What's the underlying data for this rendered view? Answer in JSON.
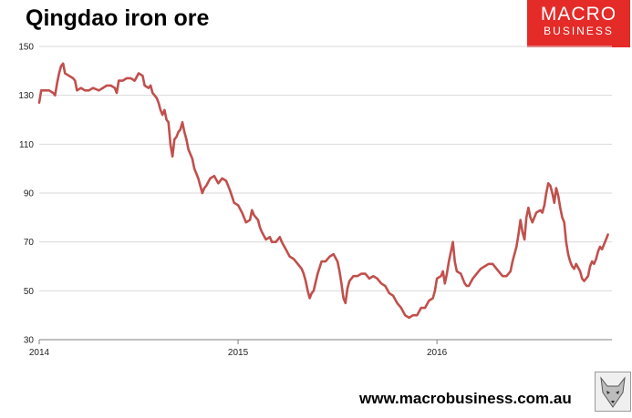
{
  "header": {
    "title": "Qingdao iron ore"
  },
  "logo": {
    "line1": "MACRO",
    "line2": "BUSINESS"
  },
  "footer": {
    "website": "www.macrobusiness.com.au"
  },
  "colors": {
    "series": "#c0504d",
    "grid": "#d9d9d9",
    "brand": "#e42b28"
  },
  "chart_data": {
    "type": "line",
    "title": "Qingdao iron ore",
    "xlabel": "",
    "ylabel": "",
    "ylim": [
      30,
      150
    ],
    "xlim": [
      2014.0,
      2016.88
    ],
    "yticks": [
      30,
      50,
      70,
      90,
      110,
      130,
      150
    ],
    "xticks": [
      {
        "value": 2014.0,
        "label": "2014"
      },
      {
        "value": 2015.0,
        "label": "2015"
      },
      {
        "value": 2016.0,
        "label": "2016"
      }
    ],
    "grid": true,
    "legend": "none",
    "series": [
      {
        "name": "Qingdao iron ore",
        "points": [
          [
            2014.0,
            127
          ],
          [
            2014.01,
            132
          ],
          [
            2014.03,
            132
          ],
          [
            2014.05,
            132
          ],
          [
            2014.07,
            131
          ],
          [
            2014.08,
            130
          ],
          [
            2014.09,
            135
          ],
          [
            2014.1,
            139
          ],
          [
            2014.11,
            142
          ],
          [
            2014.12,
            143
          ],
          [
            2014.13,
            139
          ],
          [
            2014.15,
            138
          ],
          [
            2014.17,
            137
          ],
          [
            2014.18,
            136
          ],
          [
            2014.19,
            132
          ],
          [
            2014.21,
            133
          ],
          [
            2014.23,
            132
          ],
          [
            2014.25,
            132
          ],
          [
            2014.27,
            133
          ],
          [
            2014.3,
            132
          ],
          [
            2014.32,
            133
          ],
          [
            2014.34,
            134
          ],
          [
            2014.36,
            134
          ],
          [
            2014.38,
            133
          ],
          [
            2014.39,
            131
          ],
          [
            2014.4,
            136
          ],
          [
            2014.42,
            136
          ],
          [
            2014.44,
            137
          ],
          [
            2014.46,
            137
          ],
          [
            2014.48,
            136
          ],
          [
            2014.5,
            139
          ],
          [
            2014.52,
            138
          ],
          [
            2014.53,
            134
          ],
          [
            2014.55,
            133
          ],
          [
            2014.56,
            134
          ],
          [
            2014.57,
            131
          ],
          [
            2014.59,
            129
          ],
          [
            2014.6,
            127
          ],
          [
            2014.61,
            124
          ],
          [
            2014.62,
            122
          ],
          [
            2014.63,
            124
          ],
          [
            2014.64,
            120
          ],
          [
            2014.65,
            119
          ],
          [
            2014.66,
            110
          ],
          [
            2014.67,
            105
          ],
          [
            2014.68,
            112
          ],
          [
            2014.69,
            113
          ],
          [
            2014.7,
            115
          ],
          [
            2014.71,
            116
          ],
          [
            2014.72,
            119
          ],
          [
            2014.73,
            115
          ],
          [
            2014.74,
            112
          ],
          [
            2014.75,
            108
          ],
          [
            2014.76,
            106
          ],
          [
            2014.77,
            104
          ],
          [
            2014.78,
            100
          ],
          [
            2014.79,
            98
          ],
          [
            2014.8,
            96
          ],
          [
            2014.81,
            93
          ],
          [
            2014.82,
            90
          ],
          [
            2014.83,
            92
          ],
          [
            2014.84,
            93
          ],
          [
            2014.86,
            96
          ],
          [
            2014.88,
            97
          ],
          [
            2014.9,
            94
          ],
          [
            2014.92,
            96
          ],
          [
            2014.94,
            95
          ],
          [
            2014.96,
            91
          ],
          [
            2014.98,
            86
          ],
          [
            2015.0,
            85
          ],
          [
            2015.02,
            82
          ],
          [
            2015.03,
            80
          ],
          [
            2015.04,
            78
          ],
          [
            2015.06,
            79
          ],
          [
            2015.07,
            83
          ],
          [
            2015.08,
            81
          ],
          [
            2015.1,
            79
          ],
          [
            2015.11,
            76
          ],
          [
            2015.12,
            74
          ],
          [
            2015.14,
            71
          ],
          [
            2015.16,
            72
          ],
          [
            2015.17,
            70
          ],
          [
            2015.19,
            70
          ],
          [
            2015.21,
            72
          ],
          [
            2015.22,
            70
          ],
          [
            2015.24,
            67
          ],
          [
            2015.26,
            64
          ],
          [
            2015.28,
            63
          ],
          [
            2015.3,
            61
          ],
          [
            2015.32,
            59
          ],
          [
            2015.33,
            57
          ],
          [
            2015.34,
            54
          ],
          [
            2015.35,
            50
          ],
          [
            2015.36,
            47
          ],
          [
            2015.37,
            49
          ],
          [
            2015.38,
            50
          ],
          [
            2015.4,
            57
          ],
          [
            2015.42,
            62
          ],
          [
            2015.44,
            62
          ],
          [
            2015.46,
            64
          ],
          [
            2015.48,
            65
          ],
          [
            2015.5,
            62
          ],
          [
            2015.51,
            58
          ],
          [
            2015.52,
            53
          ],
          [
            2015.53,
            47
          ],
          [
            2015.54,
            45
          ],
          [
            2015.55,
            51
          ],
          [
            2015.56,
            54
          ],
          [
            2015.58,
            56
          ],
          [
            2015.6,
            56
          ],
          [
            2015.62,
            57
          ],
          [
            2015.64,
            57
          ],
          [
            2015.66,
            55
          ],
          [
            2015.68,
            56
          ],
          [
            2015.7,
            55
          ],
          [
            2015.72,
            53
          ],
          [
            2015.74,
            52
          ],
          [
            2015.76,
            49
          ],
          [
            2015.78,
            48
          ],
          [
            2015.8,
            45
          ],
          [
            2015.82,
            43
          ],
          [
            2015.84,
            40
          ],
          [
            2015.86,
            39
          ],
          [
            2015.88,
            40
          ],
          [
            2015.9,
            40
          ],
          [
            2015.92,
            43
          ],
          [
            2015.94,
            43
          ],
          [
            2015.96,
            46
          ],
          [
            2015.98,
            47
          ],
          [
            2015.99,
            50
          ],
          [
            2016.0,
            55
          ],
          [
            2016.02,
            56
          ],
          [
            2016.03,
            58
          ],
          [
            2016.04,
            53
          ],
          [
            2016.05,
            57
          ],
          [
            2016.06,
            62
          ],
          [
            2016.07,
            66
          ],
          [
            2016.08,
            70
          ],
          [
            2016.09,
            62
          ],
          [
            2016.1,
            58
          ],
          [
            2016.12,
            57
          ],
          [
            2016.14,
            53
          ],
          [
            2016.15,
            52
          ],
          [
            2016.16,
            52
          ],
          [
            2016.18,
            55
          ],
          [
            2016.2,
            57
          ],
          [
            2016.22,
            59
          ],
          [
            2016.24,
            60
          ],
          [
            2016.26,
            61
          ],
          [
            2016.28,
            61
          ],
          [
            2016.3,
            59
          ],
          [
            2016.32,
            57
          ],
          [
            2016.33,
            56
          ],
          [
            2016.35,
            56
          ],
          [
            2016.37,
            58
          ],
          [
            2016.38,
            62
          ],
          [
            2016.4,
            68
          ],
          [
            2016.41,
            73
          ],
          [
            2016.42,
            79
          ],
          [
            2016.43,
            74
          ],
          [
            2016.44,
            71
          ],
          [
            2016.45,
            80
          ],
          [
            2016.46,
            84
          ],
          [
            2016.47,
            80
          ],
          [
            2016.48,
            78
          ],
          [
            2016.5,
            82
          ],
          [
            2016.52,
            83
          ],
          [
            2016.53,
            82
          ],
          [
            2016.54,
            85
          ],
          [
            2016.55,
            90
          ],
          [
            2016.56,
            94
          ],
          [
            2016.57,
            93
          ],
          [
            2016.58,
            90
          ],
          [
            2016.59,
            86
          ],
          [
            2016.6,
            92
          ],
          [
            2016.61,
            89
          ],
          [
            2016.62,
            84
          ],
          [
            2016.63,
            80
          ],
          [
            2016.64,
            78
          ],
          [
            2016.65,
            70
          ],
          [
            2016.66,
            65
          ],
          [
            2016.67,
            62
          ],
          [
            2016.68,
            60
          ],
          [
            2016.69,
            59
          ],
          [
            2016.7,
            61
          ],
          [
            2016.72,
            58
          ],
          [
            2016.73,
            55
          ],
          [
            2016.74,
            54
          ],
          [
            2016.75,
            55
          ],
          [
            2016.76,
            56
          ],
          [
            2016.77,
            60
          ],
          [
            2016.78,
            62
          ],
          [
            2016.79,
            61
          ],
          [
            2016.8,
            63
          ],
          [
            2016.81,
            66
          ],
          [
            2016.82,
            68
          ],
          [
            2016.83,
            67
          ],
          [
            2016.84,
            69
          ],
          [
            2016.85,
            71
          ],
          [
            2016.86,
            73
          ]
        ]
      }
    ]
  }
}
